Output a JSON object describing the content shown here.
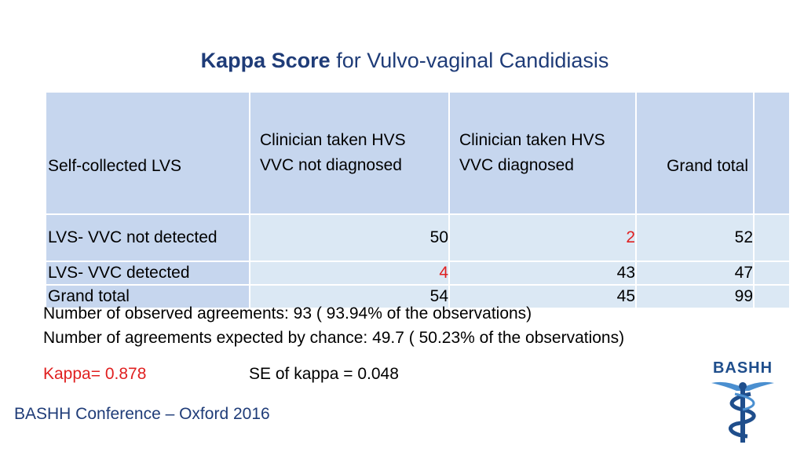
{
  "title": {
    "bold": "Kappa Score",
    "rest": " for Vulvo-vaginal Candidiasis"
  },
  "table": {
    "header": {
      "c0": "Self-collected LVS",
      "c1_line1": "Clinician taken HVS",
      "c1_line2": "VVC not diagnosed",
      "c2_line1": "Clinician taken HVS",
      "c2_line2": "VVC diagnosed",
      "c3": "Grand total"
    },
    "rows": [
      {
        "label": "LVS- VVC not detected",
        "v1": "50",
        "v2": "2",
        "v3": "52"
      },
      {
        "label": "LVS- VVC detected",
        "v1": "4",
        "v2": "43",
        "v3": "47"
      },
      {
        "label": "Grand total",
        "v1": "54",
        "v2": "45",
        "v3": "99"
      }
    ]
  },
  "stats": {
    "observed": "Number of observed agreements: 93 ( 93.94% of the observations)",
    "expected": "Number of agreements expected by chance: 49.7 ( 50.23% of the observations)"
  },
  "kappa": "Kappa= 0.878",
  "se": "SE of kappa = 0.048",
  "footer": "BASHH Conference – Oxford 2016",
  "logo": {
    "text": "BASHH"
  },
  "colors": {
    "title": "#1f3c78",
    "header_fill": "#c6d6ee",
    "cell_fill": "#dbe8f4",
    "highlight": "#e02020"
  }
}
